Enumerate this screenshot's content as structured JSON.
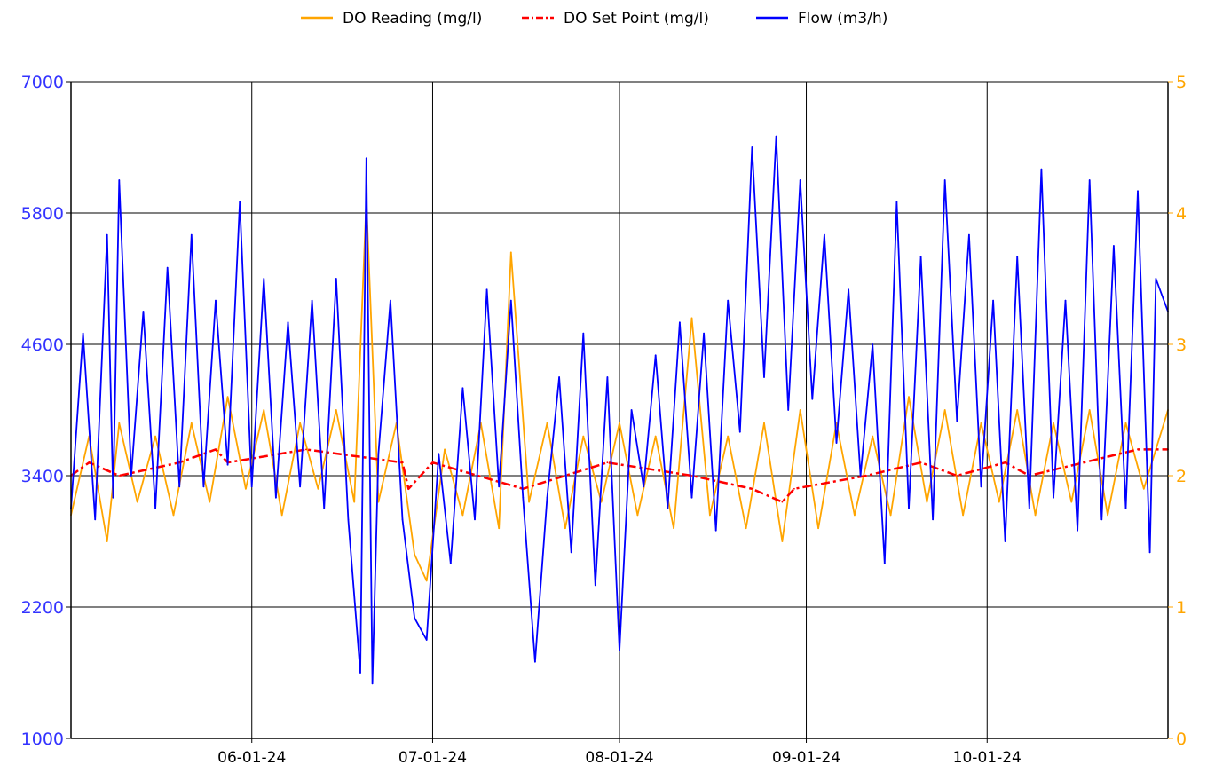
{
  "chart_data": {
    "type": "line",
    "title": "",
    "xlabel": "",
    "ylabel_left": "",
    "ylabel_right": "",
    "x_ticks": [
      "06-01-24",
      "07-01-24",
      "08-01-24",
      "09-01-24",
      "10-01-24"
    ],
    "x_range": [
      "2024-05-02",
      "2024-10-31"
    ],
    "y_left": {
      "min": 1000,
      "max": 7000,
      "ticks": [
        1000,
        2200,
        3400,
        4600,
        5800,
        7000
      ],
      "color": "#3333ff"
    },
    "y_right": {
      "min": 0,
      "max": 5,
      "ticks": [
        0,
        1,
        2,
        3,
        4,
        5
      ],
      "color": "#ffa500"
    },
    "grid": true,
    "legend_position": "top-center",
    "series": [
      {
        "name": "DO Reading (mg/l)",
        "axis": "right",
        "color": "#ffa500",
        "style": "solid",
        "points": [
          [
            "2024-05-02",
            1.7
          ],
          [
            "2024-05-05",
            2.3
          ],
          [
            "2024-05-08",
            1.5
          ],
          [
            "2024-05-10",
            2.4
          ],
          [
            "2024-05-13",
            1.8
          ],
          [
            "2024-05-16",
            2.3
          ],
          [
            "2024-05-19",
            1.7
          ],
          [
            "2024-05-22",
            2.4
          ],
          [
            "2024-05-25",
            1.8
          ],
          [
            "2024-05-28",
            2.6
          ],
          [
            "2024-05-31",
            1.9
          ],
          [
            "2024-06-03",
            2.5
          ],
          [
            "2024-06-06",
            1.7
          ],
          [
            "2024-06-09",
            2.4
          ],
          [
            "2024-06-12",
            1.9
          ],
          [
            "2024-06-15",
            2.5
          ],
          [
            "2024-06-18",
            1.8
          ],
          [
            "2024-06-20",
            4.1
          ],
          [
            "2024-06-22",
            1.8
          ],
          [
            "2024-06-25",
            2.4
          ],
          [
            "2024-06-28",
            1.4
          ],
          [
            "2024-06-30",
            1.2
          ],
          [
            "2024-07-03",
            2.2
          ],
          [
            "2024-07-06",
            1.7
          ],
          [
            "2024-07-09",
            2.4
          ],
          [
            "2024-07-12",
            1.6
          ],
          [
            "2024-07-14",
            3.7
          ],
          [
            "2024-07-17",
            1.8
          ],
          [
            "2024-07-20",
            2.4
          ],
          [
            "2024-07-23",
            1.6
          ],
          [
            "2024-07-26",
            2.3
          ],
          [
            "2024-07-29",
            1.8
          ],
          [
            "2024-08-01",
            2.4
          ],
          [
            "2024-08-04",
            1.7
          ],
          [
            "2024-08-07",
            2.3
          ],
          [
            "2024-08-10",
            1.6
          ],
          [
            "2024-08-13",
            3.2
          ],
          [
            "2024-08-16",
            1.7
          ],
          [
            "2024-08-19",
            2.3
          ],
          [
            "2024-08-22",
            1.6
          ],
          [
            "2024-08-25",
            2.4
          ],
          [
            "2024-08-28",
            1.5
          ],
          [
            "2024-08-31",
            2.5
          ],
          [
            "2024-09-03",
            1.6
          ],
          [
            "2024-09-06",
            2.4
          ],
          [
            "2024-09-09",
            1.7
          ],
          [
            "2024-09-12",
            2.3
          ],
          [
            "2024-09-15",
            1.7
          ],
          [
            "2024-09-18",
            2.6
          ],
          [
            "2024-09-21",
            1.8
          ],
          [
            "2024-09-24",
            2.5
          ],
          [
            "2024-09-27",
            1.7
          ],
          [
            "2024-09-30",
            2.4
          ],
          [
            "2024-10-03",
            1.8
          ],
          [
            "2024-10-06",
            2.5
          ],
          [
            "2024-10-09",
            1.7
          ],
          [
            "2024-10-12",
            2.4
          ],
          [
            "2024-10-15",
            1.8
          ],
          [
            "2024-10-18",
            2.5
          ],
          [
            "2024-10-21",
            1.7
          ],
          [
            "2024-10-24",
            2.4
          ],
          [
            "2024-10-27",
            1.9
          ],
          [
            "2024-10-31",
            2.5
          ]
        ]
      },
      {
        "name": "DO Set Point (mg/l)",
        "axis": "right",
        "color": "#ff0000",
        "style": "dash-dot",
        "points": [
          [
            "2024-05-02",
            2.0
          ],
          [
            "2024-05-05",
            2.1
          ],
          [
            "2024-05-10",
            2.0
          ],
          [
            "2024-05-20",
            2.1
          ],
          [
            "2024-05-26",
            2.2
          ],
          [
            "2024-05-28",
            2.1
          ],
          [
            "2024-06-10",
            2.2
          ],
          [
            "2024-06-26",
            2.1
          ],
          [
            "2024-06-27",
            1.9
          ],
          [
            "2024-07-01",
            2.1
          ],
          [
            "2024-07-16",
            1.9
          ],
          [
            "2024-07-30",
            2.1
          ],
          [
            "2024-08-13",
            2.0
          ],
          [
            "2024-08-23",
            1.9
          ],
          [
            "2024-08-28",
            1.8
          ],
          [
            "2024-08-30",
            1.9
          ],
          [
            "2024-09-11",
            2.0
          ],
          [
            "2024-09-20",
            2.1
          ],
          [
            "2024-09-26",
            2.0
          ],
          [
            "2024-10-04",
            2.1
          ],
          [
            "2024-10-08",
            2.0
          ],
          [
            "2024-10-26",
            2.2
          ],
          [
            "2024-10-31",
            2.2
          ]
        ]
      },
      {
        "name": "Flow (m3/h)",
        "axis": "left",
        "color": "#0000ff",
        "style": "solid",
        "points": [
          [
            "2024-05-02",
            3100
          ],
          [
            "2024-05-04",
            4700
          ],
          [
            "2024-05-06",
            3000
          ],
          [
            "2024-05-08",
            5600
          ],
          [
            "2024-05-09",
            3200
          ],
          [
            "2024-05-10",
            6100
          ],
          [
            "2024-05-12",
            3400
          ],
          [
            "2024-05-14",
            4900
          ],
          [
            "2024-05-16",
            3100
          ],
          [
            "2024-05-18",
            5300
          ],
          [
            "2024-05-20",
            3300
          ],
          [
            "2024-05-22",
            5600
          ],
          [
            "2024-05-24",
            3300
          ],
          [
            "2024-05-26",
            5000
          ],
          [
            "2024-05-28",
            3500
          ],
          [
            "2024-05-30",
            5900
          ],
          [
            "2024-06-01",
            3300
          ],
          [
            "2024-06-03",
            5200
          ],
          [
            "2024-06-05",
            3200
          ],
          [
            "2024-06-07",
            4800
          ],
          [
            "2024-06-09",
            3300
          ],
          [
            "2024-06-11",
            5000
          ],
          [
            "2024-06-13",
            3100
          ],
          [
            "2024-06-15",
            5200
          ],
          [
            "2024-06-17",
            3000
          ],
          [
            "2024-06-19",
            1600
          ],
          [
            "2024-06-20",
            6300
          ],
          [
            "2024-06-21",
            1500
          ],
          [
            "2024-06-22",
            3600
          ],
          [
            "2024-06-24",
            5000
          ],
          [
            "2024-06-26",
            3000
          ],
          [
            "2024-06-28",
            2100
          ],
          [
            "2024-06-30",
            1900
          ],
          [
            "2024-07-02",
            3600
          ],
          [
            "2024-07-04",
            2600
          ],
          [
            "2024-07-06",
            4200
          ],
          [
            "2024-07-08",
            3000
          ],
          [
            "2024-07-10",
            5100
          ],
          [
            "2024-07-12",
            3300
          ],
          [
            "2024-07-14",
            5000
          ],
          [
            "2024-07-16",
            3200
          ],
          [
            "2024-07-18",
            1700
          ],
          [
            "2024-07-20",
            3200
          ],
          [
            "2024-07-22",
            4300
          ],
          [
            "2024-07-24",
            2700
          ],
          [
            "2024-07-26",
            4700
          ],
          [
            "2024-07-28",
            2400
          ],
          [
            "2024-07-30",
            4300
          ],
          [
            "2024-08-01",
            1800
          ],
          [
            "2024-08-03",
            4000
          ],
          [
            "2024-08-05",
            3300
          ],
          [
            "2024-08-07",
            4500
          ],
          [
            "2024-08-09",
            3100
          ],
          [
            "2024-08-11",
            4800
          ],
          [
            "2024-08-13",
            3200
          ],
          [
            "2024-08-15",
            4700
          ],
          [
            "2024-08-17",
            2900
          ],
          [
            "2024-08-19",
            5000
          ],
          [
            "2024-08-21",
            3800
          ],
          [
            "2024-08-23",
            6400
          ],
          [
            "2024-08-25",
            4300
          ],
          [
            "2024-08-27",
            6500
          ],
          [
            "2024-08-29",
            4000
          ],
          [
            "2024-08-31",
            6100
          ],
          [
            "2024-09-02",
            4100
          ],
          [
            "2024-09-04",
            5600
          ],
          [
            "2024-09-06",
            3700
          ],
          [
            "2024-09-08",
            5100
          ],
          [
            "2024-09-10",
            3400
          ],
          [
            "2024-09-12",
            4600
          ],
          [
            "2024-09-14",
            2600
          ],
          [
            "2024-09-16",
            5900
          ],
          [
            "2024-09-18",
            3100
          ],
          [
            "2024-09-20",
            5400
          ],
          [
            "2024-09-22",
            3000
          ],
          [
            "2024-09-24",
            6100
          ],
          [
            "2024-09-26",
            3900
          ],
          [
            "2024-09-28",
            5600
          ],
          [
            "2024-09-30",
            3300
          ],
          [
            "2024-10-02",
            5000
          ],
          [
            "2024-10-04",
            2800
          ],
          [
            "2024-10-06",
            5400
          ],
          [
            "2024-10-08",
            3100
          ],
          [
            "2024-10-10",
            6200
          ],
          [
            "2024-10-12",
            3200
          ],
          [
            "2024-10-14",
            5000
          ],
          [
            "2024-10-16",
            2900
          ],
          [
            "2024-10-18",
            6100
          ],
          [
            "2024-10-20",
            3000
          ],
          [
            "2024-10-22",
            5500
          ],
          [
            "2024-10-24",
            3100
          ],
          [
            "2024-10-26",
            6000
          ],
          [
            "2024-10-28",
            2700
          ],
          [
            "2024-10-29",
            5200
          ],
          [
            "2024-10-31",
            4900
          ]
        ]
      }
    ]
  }
}
